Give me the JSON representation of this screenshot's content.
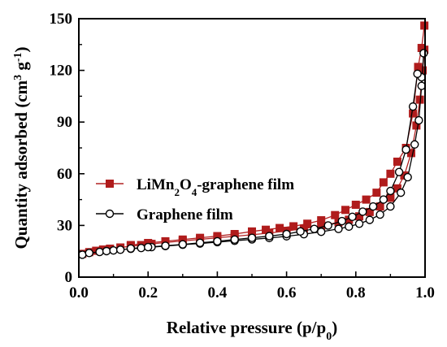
{
  "chart_data": {
    "type": "line",
    "xlabel": "Relative pressure (p/p0)",
    "ylabel": "Quantity adsorbed (cm3 g-1)",
    "xlim": [
      0.0,
      1.0
    ],
    "ylim": [
      0,
      150
    ],
    "xticks": [
      "0.0",
      "0.2",
      "0.4",
      "0.6",
      "0.8",
      "1.0"
    ],
    "yticks": [
      "0",
      "30",
      "60",
      "90",
      "120",
      "150"
    ],
    "grid": false,
    "legend_position": "center-left",
    "series": [
      {
        "name": "LiMn2O4-graphene film",
        "marker": "filled-square",
        "color": "#b22222",
        "markerColor": "#b01c1c",
        "adsorption": {
          "x": [
            0.01,
            0.03,
            0.05,
            0.07,
            0.09,
            0.12,
            0.15,
            0.18,
            0.21,
            0.25,
            0.3,
            0.35,
            0.4,
            0.45,
            0.5,
            0.55,
            0.6,
            0.65,
            0.7,
            0.75,
            0.78,
            0.81,
            0.84,
            0.87,
            0.9,
            0.92,
            0.94,
            0.96,
            0.975,
            0.985,
            0.993,
            0.998
          ],
          "y": [
            13.5,
            14.5,
            15.3,
            16.0,
            16.5,
            17.2,
            17.9,
            18.6,
            19.3,
            20.1,
            21.0,
            21.9,
            22.8,
            23.7,
            24.6,
            25.6,
            26.8,
            28.2,
            29.8,
            31.8,
            33.3,
            35.3,
            37.8,
            41.0,
            46.0,
            51.5,
            59.0,
            72.0,
            88.0,
            103.0,
            120.0,
            132.0
          ]
        },
        "desorption": {
          "x": [
            0.998,
            0.99,
            0.98,
            0.965,
            0.945,
            0.92,
            0.9,
            0.88,
            0.86,
            0.83,
            0.8,
            0.77,
            0.74,
            0.7,
            0.66,
            0.62,
            0.58,
            0.54,
            0.5,
            0.45,
            0.4,
            0.35,
            0.3,
            0.25,
            0.2,
            0.15
          ],
          "y": [
            146.0,
            133.0,
            122.0,
            95.0,
            75.0,
            67.0,
            60.0,
            55.0,
            49.0,
            45.0,
            42.0,
            39.0,
            36.0,
            33.0,
            31.0,
            29.5,
            28.5,
            27.5,
            26.5,
            25.0,
            23.8,
            22.8,
            21.8,
            20.8,
            19.8,
            18.6
          ]
        }
      },
      {
        "name": "Graphene film",
        "marker": "open-circle",
        "color": "#000000",
        "markerColor": "#000000",
        "adsorption": {
          "x": [
            0.01,
            0.03,
            0.06,
            0.08,
            0.1,
            0.12,
            0.15,
            0.18,
            0.21,
            0.25,
            0.3,
            0.35,
            0.4,
            0.45,
            0.5,
            0.55,
            0.6,
            0.65,
            0.7,
            0.75,
            0.78,
            0.81,
            0.84,
            0.87,
            0.9,
            0.93,
            0.95,
            0.97,
            0.982,
            0.99,
            0.996
          ],
          "y": [
            13.0,
            14.0,
            14.6,
            15.1,
            15.5,
            15.9,
            16.4,
            16.9,
            17.4,
            18.0,
            18.8,
            19.5,
            20.3,
            21.1,
            21.9,
            22.7,
            23.7,
            24.9,
            26.3,
            28.0,
            29.3,
            31.0,
            33.2,
            36.3,
            41.0,
            49.0,
            58.0,
            77.0,
            91.0,
            111.0,
            130.0
          ]
        },
        "desorption": {
          "x": [
            0.99,
            0.978,
            0.965,
            0.945,
            0.925,
            0.9,
            0.88,
            0.85,
            0.82,
            0.79,
            0.76,
            0.72,
            0.68,
            0.64,
            0.6,
            0.55,
            0.5,
            0.45,
            0.4,
            0.35,
            0.3,
            0.25,
            0.2,
            0.15
          ],
          "y": [
            116.0,
            118.0,
            99.0,
            74.0,
            61.0,
            50.0,
            45.0,
            41.0,
            38.0,
            35.0,
            32.5,
            30.0,
            28.0,
            26.5,
            25.0,
            23.8,
            22.8,
            21.8,
            20.8,
            19.9,
            19.0,
            18.2,
            17.4,
            16.6
          ]
        }
      }
    ]
  }
}
